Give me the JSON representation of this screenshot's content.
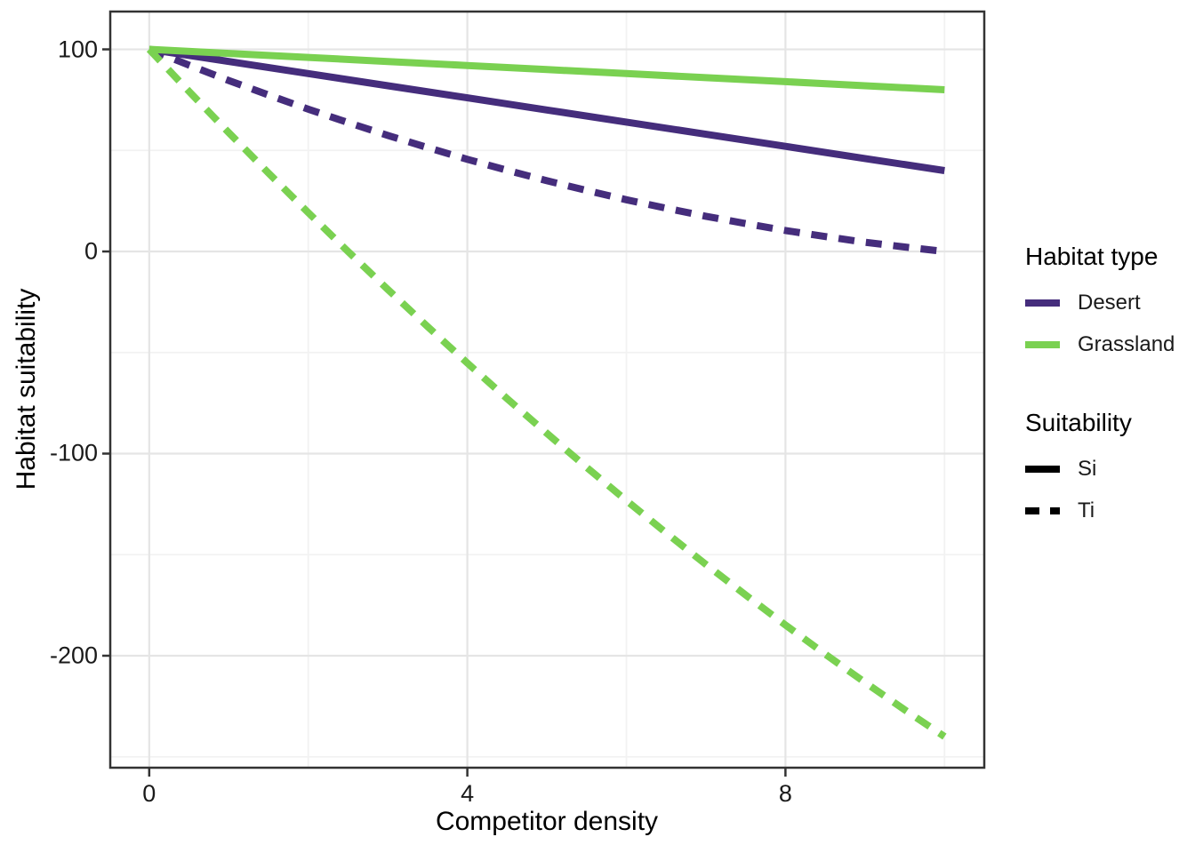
{
  "chart_data": {
    "type": "line",
    "title": "",
    "xlabel": "Competitor density",
    "ylabel": "Habitat suitability",
    "xlim": [
      -0.49,
      10.5
    ],
    "ylim": [
      -255.4,
      118.7
    ],
    "grid": "major+minor",
    "legend_position": "right",
    "xticks": [
      {
        "value": 0,
        "label": "0"
      },
      {
        "value": 4,
        "label": "4"
      },
      {
        "value": 8,
        "label": "8"
      }
    ],
    "yticks": [
      {
        "value": 100,
        "label": "100"
      },
      {
        "value": 0,
        "label": "0"
      },
      {
        "value": -100,
        "label": "-100"
      },
      {
        "value": -200,
        "label": "-200"
      }
    ],
    "x_minor": [
      2,
      6,
      10
    ],
    "y_minor": [
      50,
      -50,
      -150,
      -250
    ],
    "series": [
      {
        "name": "Desert Si",
        "habitat": "Desert",
        "suitability": "Si",
        "linetype": "solid",
        "color": "#452d7c",
        "points": [
          [
            0,
            100
          ],
          [
            1,
            94
          ],
          [
            2,
            88
          ],
          [
            3,
            82
          ],
          [
            4,
            76
          ],
          [
            5,
            70
          ],
          [
            6,
            64
          ],
          [
            7,
            58
          ],
          [
            8,
            52
          ],
          [
            9,
            46
          ],
          [
            10,
            40
          ]
        ]
      },
      {
        "name": "Desert Ti",
        "habitat": "Desert",
        "suitability": "Ti",
        "linetype": "dashed",
        "color": "#452d7c",
        "points": [
          [
            0,
            100
          ],
          [
            0.5,
            92.2
          ],
          [
            1,
            84.6
          ],
          [
            1.5,
            77.4
          ],
          [
            2,
            70.4
          ],
          [
            2.5,
            63.8
          ],
          [
            3,
            57.4
          ],
          [
            3.5,
            51.4
          ],
          [
            4,
            45.6
          ],
          [
            4.5,
            40.2
          ],
          [
            5,
            35
          ],
          [
            5.5,
            30.2
          ],
          [
            6,
            25.6
          ],
          [
            6.5,
            21.4
          ],
          [
            7,
            17.4
          ],
          [
            7.5,
            13.8
          ],
          [
            8,
            10.4
          ],
          [
            8.5,
            7.4
          ],
          [
            9,
            4.6
          ],
          [
            9.5,
            2.2
          ],
          [
            10,
            0
          ]
        ]
      },
      {
        "name": "Grassland Si",
        "habitat": "Grassland",
        "suitability": "Si",
        "linetype": "solid",
        "color": "#7ad151",
        "points": [
          [
            0,
            100
          ],
          [
            1,
            98
          ],
          [
            2,
            96
          ],
          [
            3,
            94
          ],
          [
            4,
            92
          ],
          [
            5,
            90
          ],
          [
            6,
            88
          ],
          [
            7,
            86
          ],
          [
            8,
            84
          ],
          [
            9,
            82
          ],
          [
            10,
            80
          ]
        ]
      },
      {
        "name": "Grassland Ti",
        "habitat": "Grassland",
        "suitability": "Ti",
        "linetype": "dashed",
        "color": "#7ad151",
        "points": [
          [
            0,
            100
          ],
          [
            0.5,
            79.2
          ],
          [
            1,
            58.8
          ],
          [
            1.5,
            38.8
          ],
          [
            2,
            19.2
          ],
          [
            2.5,
            0
          ],
          [
            3,
            -18.8
          ],
          [
            3.5,
            -37.2
          ],
          [
            4,
            -55.2
          ],
          [
            4.5,
            -72.8
          ],
          [
            5,
            -90
          ],
          [
            5.5,
            -106.8
          ],
          [
            6,
            -123.2
          ],
          [
            6.5,
            -139.2
          ],
          [
            7,
            -154.8
          ],
          [
            7.5,
            -170
          ],
          [
            8,
            -184.8
          ],
          [
            8.5,
            -199.2
          ],
          [
            9,
            -213.2
          ],
          [
            9.5,
            -226.8
          ],
          [
            10,
            -240
          ]
        ]
      }
    ]
  },
  "legend": {
    "groups": [
      {
        "title": "Habitat type",
        "items": [
          {
            "label": "Desert",
            "color": "#452d7c",
            "linetype": "solid"
          },
          {
            "label": "Grassland",
            "color": "#7ad151",
            "linetype": "solid"
          }
        ]
      },
      {
        "title": "Suitability",
        "items": [
          {
            "label": "Si",
            "color": "#000000",
            "linetype": "solid"
          },
          {
            "label": "Ti",
            "color": "#000000",
            "linetype": "dashed"
          }
        ]
      }
    ]
  },
  "colors": {
    "panel_border": "#333333",
    "grid_major": "#e5e5e5",
    "grid_minor": "#f2f2f2",
    "tick_mark": "#333333",
    "background": "#ffffff"
  }
}
